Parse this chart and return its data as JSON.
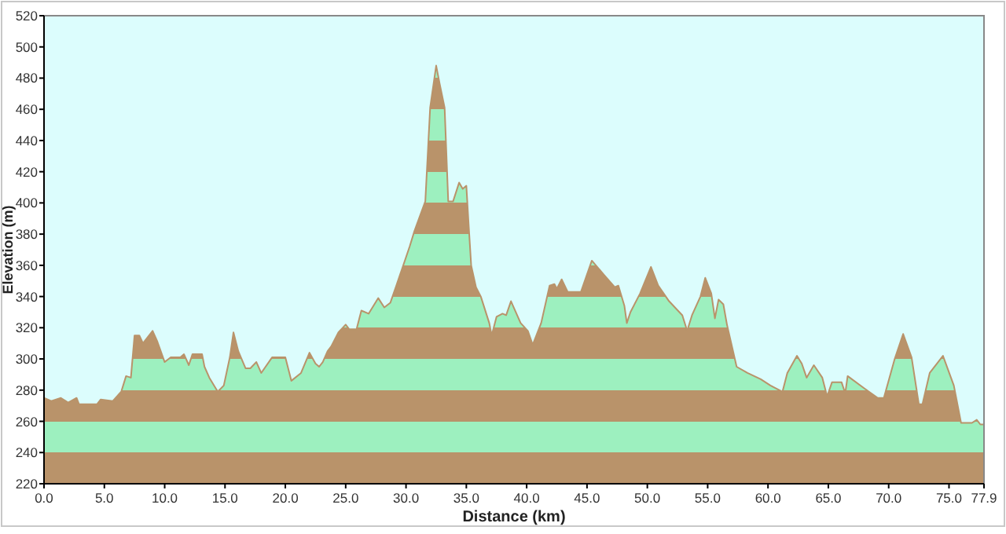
{
  "chart_data": {
    "type": "area",
    "xlabel": "Distance (km)",
    "ylabel": "Elevation (m)",
    "xlim": [
      0,
      77.9
    ],
    "ylim": [
      220,
      520
    ],
    "xticks": [
      {
        "value": 0,
        "label": "0.0"
      },
      {
        "value": 5,
        "label": "5.0"
      },
      {
        "value": 10,
        "label": "10.0"
      },
      {
        "value": 15,
        "label": "15.0"
      },
      {
        "value": 20,
        "label": "20.0"
      },
      {
        "value": 25,
        "label": "25.0"
      },
      {
        "value": 30,
        "label": "30.0"
      },
      {
        "value": 35,
        "label": "35.0"
      },
      {
        "value": 40,
        "label": "40.0"
      },
      {
        "value": 45,
        "label": "45.0"
      },
      {
        "value": 50,
        "label": "50.0"
      },
      {
        "value": 55,
        "label": "55.0"
      },
      {
        "value": 60,
        "label": "60.0"
      },
      {
        "value": 65,
        "label": "65.0"
      },
      {
        "value": 70,
        "label": "70.0"
      },
      {
        "value": 75,
        "label": "75.0"
      },
      {
        "value": 77.9,
        "label": "77.9"
      }
    ],
    "yticks": [
      220,
      240,
      260,
      280,
      300,
      320,
      340,
      360,
      380,
      400,
      420,
      440,
      460,
      480,
      500,
      520
    ],
    "grid": false,
    "legend": false,
    "series": [
      {
        "color": "#b9936a",
        "x": [
          0,
          0.6,
          1.4,
          2,
          2.7,
          2.9,
          4.4,
          4.7,
          5.7,
          6.4,
          6.8,
          7.2,
          7.5,
          7.9,
          8.2,
          9,
          9.4,
          10,
          10.5,
          11.3,
          11.6,
          12,
          12.3,
          13.1,
          13.3,
          13.7,
          14.4,
          14.9,
          15.4,
          15.7,
          16.1,
          16.7,
          17.1,
          17.6,
          18,
          18.9,
          20,
          20.5,
          21.3,
          22,
          22.5,
          22.8,
          23.1,
          23.5,
          23.8,
          24.4,
          25,
          25.3,
          25.9,
          26.3,
          26.9,
          27.7,
          28.2,
          28.7,
          29.2,
          30.3,
          30.7,
          31.6,
          32,
          32.5,
          32.8,
          33.2,
          33.5,
          33.9,
          34.4,
          34.7,
          35,
          35.2,
          35.4,
          35.8,
          36.2,
          36.9,
          37.1,
          37.5,
          38,
          38.3,
          38.7,
          39.5,
          40.1,
          40.5,
          41.2,
          41.9,
          42.3,
          42.5,
          42.9,
          43.4,
          44.5,
          45.4,
          46.4,
          47.3,
          47.6,
          48.1,
          48.3,
          48.6,
          49.4,
          50.3,
          50.9,
          51.8,
          52.9,
          53.3,
          53.7,
          54.4,
          54.8,
          55.3,
          55.6,
          55.9,
          56.3,
          56.6,
          57.4,
          58.3,
          59.4,
          60.2,
          61.2,
          61.6,
          62.4,
          62.8,
          63.2,
          63.8,
          64.5,
          64.9,
          65.3,
          66.1,
          66.4,
          66.6,
          68,
          69.1,
          69.6,
          70.5,
          71.2,
          71.9,
          72.5,
          72.8,
          73.4,
          74.5,
          75.4,
          76,
          76.9,
          77.3,
          77.6,
          77.9
        ],
        "values": [
          275,
          273,
          275,
          272,
          275,
          271,
          271,
          274,
          273,
          279,
          289,
          288,
          315,
          315,
          310,
          318,
          311,
          298,
          301,
          301,
          303,
          296,
          303,
          303,
          295,
          288,
          279,
          283,
          301,
          317,
          305,
          294,
          294,
          298,
          291,
          301,
          301,
          286,
          291,
          304,
          297,
          295,
          298,
          305,
          308,
          317,
          322,
          319,
          319,
          331,
          329,
          339,
          333,
          336,
          347,
          372,
          382,
          401,
          461,
          488,
          476,
          461,
          401,
          401,
          413,
          409,
          411,
          385,
          360,
          346,
          340,
          323,
          315,
          327,
          329,
          328,
          337,
          323,
          318,
          309,
          323,
          347,
          348,
          345,
          351,
          343,
          343,
          363,
          354,
          346,
          347,
          334,
          323,
          330,
          342,
          359,
          347,
          337,
          328,
          318,
          328,
          340,
          352,
          342,
          326,
          338,
          335,
          322,
          295,
          291,
          287,
          283,
          279,
          291,
          302,
          297,
          288,
          296,
          288,
          276,
          285,
          285,
          278,
          289,
          281,
          275,
          275,
          300,
          316,
          301,
          271,
          271,
          291,
          302,
          283,
          259,
          259,
          261,
          258,
          258
        ]
      }
    ]
  }
}
